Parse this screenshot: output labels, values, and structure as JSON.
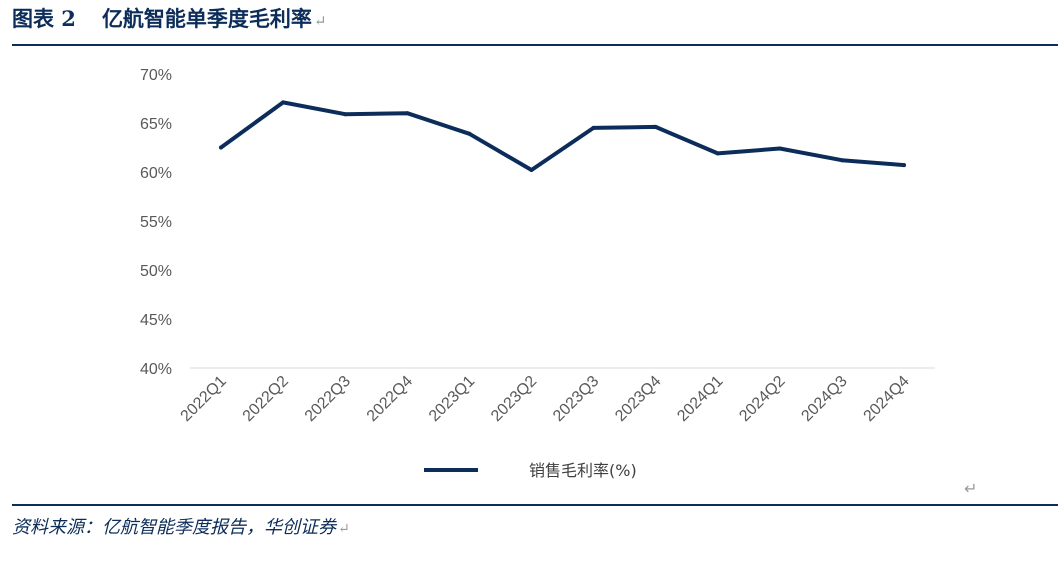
{
  "header": {
    "fig_label": "图表 2",
    "title": "亿航智能单季度毛利率",
    "return_mark": "↵"
  },
  "footer": {
    "source": "资料来源：亿航智能季度报告，华创证券",
    "return_mark": "↵",
    "stray_return_mark": "↵"
  },
  "colors": {
    "line": "#0c2d5a",
    "axis": "#d9d9d9",
    "tick_text": "#595959",
    "accent": "#0c2d5a"
  },
  "chart_data": {
    "type": "line",
    "title": "",
    "xlabel": "",
    "ylabel": "",
    "categories": [
      "2022Q1",
      "2022Q2",
      "2022Q3",
      "2022Q4",
      "2023Q1",
      "2023Q2",
      "2023Q3",
      "2023Q4",
      "2024Q1",
      "2024Q2",
      "2024Q3",
      "2024Q4"
    ],
    "series": [
      {
        "name": "销售毛利率(%)",
        "values": [
          62.5,
          67.1,
          65.9,
          66.0,
          63.9,
          60.2,
          64.5,
          64.6,
          61.9,
          62.4,
          61.2,
          60.7
        ]
      }
    ],
    "ylim": [
      40,
      70
    ],
    "yticks": [
      40,
      45,
      50,
      55,
      60,
      65,
      70
    ],
    "ytick_labels": [
      "40%",
      "45%",
      "50%",
      "55%",
      "60%",
      "65%",
      "70%"
    ],
    "grid": false,
    "legend_position": "bottom"
  }
}
